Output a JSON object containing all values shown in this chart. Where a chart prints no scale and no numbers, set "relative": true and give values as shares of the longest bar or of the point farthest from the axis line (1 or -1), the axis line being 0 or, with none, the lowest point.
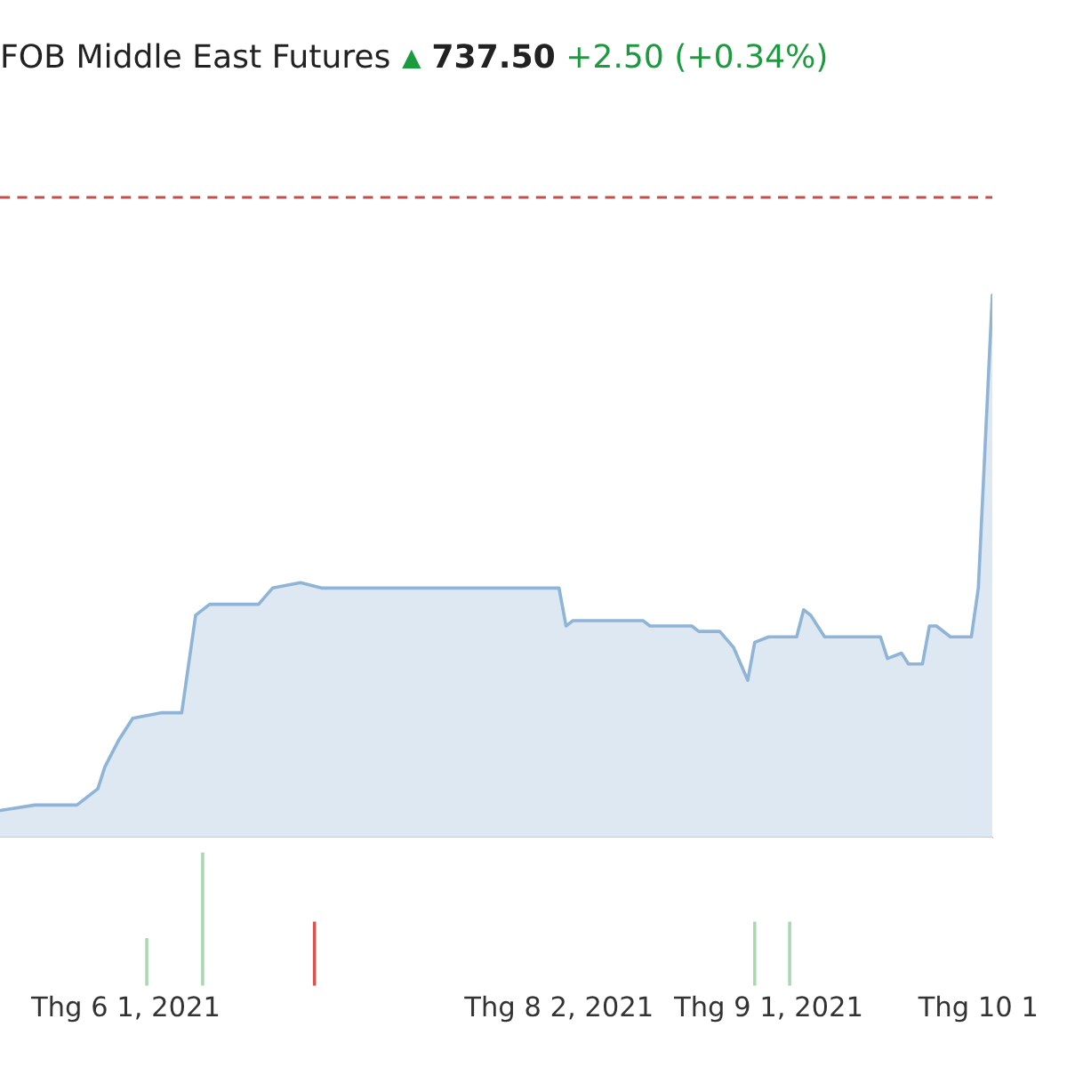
{
  "chart_data": [
    {
      "type": "area",
      "title": "FOB Middle East Futures",
      "annotations": [
        "▲",
        "737.50",
        "+2.50 (+0.34%)"
      ],
      "relative": true,
      "tick_labels": false,
      "xlim": [
        "2021-05-14",
        "2021-10-03"
      ],
      "x": [
        "2021-05-14",
        "2021-05-19",
        "2021-05-25",
        "2021-05-28",
        "2021-05-29",
        "2021-05-31",
        "2021-06-02",
        "2021-06-06",
        "2021-06-09",
        "2021-06-11",
        "2021-06-13",
        "2021-06-20",
        "2021-06-22",
        "2021-06-26",
        "2021-06-29",
        "2021-07-09",
        "2021-07-11",
        "2021-07-31",
        "2021-08-02",
        "2021-08-03",
        "2021-08-04",
        "2021-08-14",
        "2021-08-15",
        "2021-08-21",
        "2021-08-22",
        "2021-08-25",
        "2021-08-27",
        "2021-08-28",
        "2021-08-29",
        "2021-08-30",
        "2021-09-01",
        "2021-09-05",
        "2021-09-06",
        "2021-09-07",
        "2021-09-09",
        "2021-09-17",
        "2021-09-18",
        "2021-09-20",
        "2021-09-21",
        "2021-09-23",
        "2021-09-24",
        "2021-09-25",
        "2021-09-27",
        "2021-09-30",
        "2021-10-01",
        "2021-10-03"
      ],
      "series": [
        {
          "color": "#8fb4d6",
          "values": [
            0.05,
            0.06,
            0.06,
            0.09,
            0.13,
            0.18,
            0.22,
            0.23,
            0.23,
            0.41,
            0.43,
            0.43,
            0.46,
            0.47,
            0.46,
            0.46,
            0.46,
            0.46,
            0.46,
            0.39,
            0.4,
            0.4,
            0.39,
            0.39,
            0.38,
            0.38,
            0.35,
            0.32,
            0.29,
            0.36,
            0.37,
            0.37,
            0.42,
            0.41,
            0.37,
            0.37,
            0.33,
            0.34,
            0.32,
            0.32,
            0.39,
            0.39,
            0.37,
            0.37,
            0.46,
            1
          ]
        }
      ],
      "ref_lines": [
        {
          "axis": "y",
          "value": 1.18,
          "color": "#c0504d",
          "line_style": "dashed"
        }
      ]
    },
    {
      "type": "bar",
      "relative": true,
      "tick_labels": "x",
      "xlim": [
        "2021-05-14",
        "2021-10-03"
      ],
      "xticks": [
        {
          "value": "2021-06-01",
          "label": "Thg 6 1, 2021"
        },
        {
          "value": "2021-08-02",
          "label": "Thg 8 2, 2021"
        },
        {
          "value": "2021-09-01",
          "label": "Thg 9 1, 2021"
        },
        {
          "value": "2021-10-01",
          "label": "Thg 10 1"
        }
      ],
      "x": [
        "2021-06-04",
        "2021-06-12",
        "2021-06-28",
        "2021-08-30",
        "2021-09-04"
      ],
      "values": [
        0.37,
        1,
        0.49,
        0.49,
        0.49
      ],
      "colors": [
        "#a8d8b0",
        "#a8d8b0",
        "#d9534f",
        "#a8d8b0",
        "#a8d8b0"
      ]
    }
  ]
}
